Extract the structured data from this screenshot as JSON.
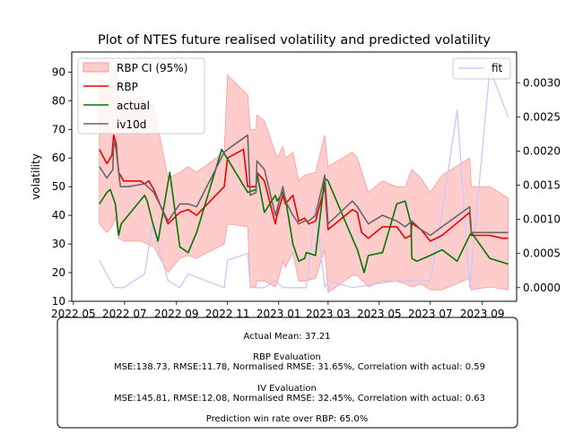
{
  "chart_data": {
    "type": "line",
    "title": "Plot of NTES future realised volatility and predicted volatility",
    "ylabel": "volatility",
    "ylim": [
      10,
      97
    ],
    "y2lim": [
      -0.0002,
      0.00345
    ],
    "yticks": [
      10,
      20,
      30,
      40,
      50,
      60,
      70,
      80,
      90
    ],
    "y2ticks": [
      "0.0000",
      "0.0005",
      "0.0010",
      "0.0015",
      "0.0020",
      "0.0025",
      "0.0030"
    ],
    "y2tick_values": [
      0,
      0.0005,
      0.001,
      0.0015,
      0.002,
      0.0025,
      0.003
    ],
    "xticks": [
      "2022 05",
      "2022 07",
      "2022 09",
      "2022 11",
      "2023 01",
      "2023 03",
      "2023 05",
      "2023 07",
      "2023 09"
    ],
    "xtick_values": [
      "2022-05-01",
      "2022-07-01",
      "2022-09-01",
      "2022-11-01",
      "2023-01-01",
      "2023-03-01",
      "2023-05-01",
      "2023-07-01",
      "2023-09-01"
    ],
    "xlim": [
      "2022-04-29",
      "2023-10-12"
    ],
    "legend_left": [
      "RBP CI (95%)",
      "RBP",
      "actual",
      "iv10d"
    ],
    "legend_right": [
      "fit"
    ],
    "legend_placement": [
      "upper left",
      "upper right"
    ],
    "colors": {
      "ci": "#ff9999",
      "rbp": "#ee0000",
      "actual": "#007700",
      "iv10d": "#666666",
      "fit": "#c8c8ff"
    },
    "series": [
      {
        "name": "RBP",
        "axis": "left",
        "points": [
          [
            "2022-06-01",
            63
          ],
          [
            "2022-06-10",
            58
          ],
          [
            "2022-06-16",
            61
          ],
          [
            "2022-06-18",
            68
          ],
          [
            "2022-06-21",
            65
          ],
          [
            "2022-06-24",
            55
          ],
          [
            "2022-06-30",
            52
          ],
          [
            "2022-07-20",
            52
          ],
          [
            "2022-07-25",
            51
          ],
          [
            "2022-07-30",
            52
          ],
          [
            "2022-08-05",
            49
          ],
          [
            "2022-08-22",
            37
          ],
          [
            "2022-09-05",
            41
          ],
          [
            "2022-09-15",
            42
          ],
          [
            "2022-09-25",
            40
          ],
          [
            "2022-10-28",
            50
          ],
          [
            "2022-11-01",
            60
          ],
          [
            "2022-11-20",
            63
          ],
          [
            "2022-11-25",
            50
          ],
          [
            "2022-12-05",
            50
          ],
          [
            "2022-12-06",
            55
          ],
          [
            "2022-12-15",
            52
          ],
          [
            "2022-12-28",
            37
          ],
          [
            "2022-12-30",
            40
          ],
          [
            "2023-01-06",
            47
          ],
          [
            "2023-01-09",
            44
          ],
          [
            "2023-01-18",
            47
          ],
          [
            "2023-01-25",
            38
          ],
          [
            "2023-02-01",
            39
          ],
          [
            "2023-02-06",
            37
          ],
          [
            "2023-02-14",
            38
          ],
          [
            "2023-02-25",
            50
          ],
          [
            "2023-03-01",
            35
          ],
          [
            "2023-03-30",
            42
          ],
          [
            "2023-04-05",
            41
          ],
          [
            "2023-04-10",
            34
          ],
          [
            "2023-04-18",
            32
          ],
          [
            "2023-05-05",
            36
          ],
          [
            "2023-05-22",
            36
          ],
          [
            "2023-06-01",
            32
          ],
          [
            "2023-06-08",
            33
          ],
          [
            "2023-06-09",
            38
          ],
          [
            "2023-06-10",
            37
          ],
          [
            "2023-06-20",
            35
          ],
          [
            "2023-07-01",
            31
          ],
          [
            "2023-07-15",
            33
          ],
          [
            "2023-08-17",
            41
          ],
          [
            "2023-08-19",
            33
          ],
          [
            "2023-09-10",
            33
          ],
          [
            "2023-09-25",
            32
          ],
          [
            "2023-10-02",
            32
          ]
        ]
      },
      {
        "name": "actual",
        "axis": "left",
        "points": [
          [
            "2022-06-01",
            44
          ],
          [
            "2022-06-10",
            48
          ],
          [
            "2022-06-14",
            49
          ],
          [
            "2022-06-20",
            44
          ],
          [
            "2022-06-24",
            33
          ],
          [
            "2022-06-27",
            37
          ],
          [
            "2022-07-25",
            47
          ],
          [
            "2022-07-28",
            45
          ],
          [
            "2022-08-03",
            38
          ],
          [
            "2022-08-10",
            31
          ],
          [
            "2022-08-24",
            55
          ],
          [
            "2022-09-05",
            29
          ],
          [
            "2022-09-15",
            27
          ],
          [
            "2022-09-25",
            34
          ],
          [
            "2022-10-25",
            63
          ],
          [
            "2022-11-25",
            48
          ],
          [
            "2022-12-05",
            49
          ],
          [
            "2022-12-06",
            55
          ],
          [
            "2022-12-15",
            41
          ],
          [
            "2022-12-28",
            47
          ],
          [
            "2022-12-30",
            45
          ],
          [
            "2023-01-06",
            48
          ],
          [
            "2023-01-09",
            46
          ],
          [
            "2023-01-18",
            30
          ],
          [
            "2023-01-25",
            24
          ],
          [
            "2023-02-01",
            25
          ],
          [
            "2023-02-03",
            27
          ],
          [
            "2023-02-14",
            26
          ],
          [
            "2023-02-25",
            53
          ],
          [
            "2023-03-01",
            52
          ],
          [
            "2023-03-30",
            32
          ],
          [
            "2023-04-05",
            28
          ],
          [
            "2023-04-13",
            20
          ],
          [
            "2023-04-18",
            26
          ],
          [
            "2023-05-05",
            27
          ],
          [
            "2023-05-22",
            44
          ],
          [
            "2023-06-01",
            45
          ],
          [
            "2023-06-08",
            37
          ],
          [
            "2023-06-09",
            25
          ],
          [
            "2023-06-15",
            24
          ],
          [
            "2023-07-01",
            26
          ],
          [
            "2023-07-15",
            28
          ],
          [
            "2023-08-02",
            24
          ],
          [
            "2023-08-17",
            33
          ],
          [
            "2023-08-19",
            34
          ],
          [
            "2023-09-10",
            25
          ],
          [
            "2023-10-02",
            23
          ]
        ]
      },
      {
        "name": "iv10d",
        "axis": "left",
        "points": [
          [
            "2022-06-01",
            57
          ],
          [
            "2022-06-10",
            53
          ],
          [
            "2022-06-17",
            56
          ],
          [
            "2022-06-18",
            66
          ],
          [
            "2022-06-21",
            63
          ],
          [
            "2022-06-26",
            50
          ],
          [
            "2022-07-05",
            50
          ],
          [
            "2022-07-25",
            51
          ],
          [
            "2022-08-05",
            48
          ],
          [
            "2022-08-22",
            38
          ],
          [
            "2022-09-05",
            44
          ],
          [
            "2022-09-15",
            44
          ],
          [
            "2022-09-25",
            43
          ],
          [
            "2022-10-28",
            62
          ],
          [
            "2022-11-01",
            63
          ],
          [
            "2022-11-25",
            68
          ],
          [
            "2022-11-28",
            47
          ],
          [
            "2022-12-05",
            48
          ],
          [
            "2022-12-06",
            59
          ],
          [
            "2022-12-15",
            56
          ],
          [
            "2022-12-28",
            40
          ],
          [
            "2022-12-30",
            42
          ],
          [
            "2023-01-06",
            50
          ],
          [
            "2023-01-09",
            45
          ],
          [
            "2023-01-18",
            40
          ],
          [
            "2023-01-25",
            37
          ],
          [
            "2023-02-01",
            38
          ],
          [
            "2023-02-06",
            38
          ],
          [
            "2023-02-14",
            40
          ],
          [
            "2023-02-25",
            54
          ],
          [
            "2023-03-01",
            37
          ],
          [
            "2023-03-30",
            45
          ],
          [
            "2023-04-05",
            43
          ],
          [
            "2023-04-18",
            37
          ],
          [
            "2023-05-05",
            40
          ],
          [
            "2023-05-22",
            38
          ],
          [
            "2023-06-01",
            36
          ],
          [
            "2023-06-09",
            38
          ],
          [
            "2023-06-20",
            35
          ],
          [
            "2023-07-01",
            33
          ],
          [
            "2023-07-15",
            36
          ],
          [
            "2023-08-17",
            43
          ],
          [
            "2023-08-19",
            34
          ],
          [
            "2023-09-25",
            34
          ],
          [
            "2023-10-02",
            34
          ]
        ]
      },
      {
        "name": "fit",
        "axis": "right",
        "points": [
          [
            "2022-06-01",
            0.0004
          ],
          [
            "2022-06-14",
            0.0001
          ],
          [
            "2022-06-19",
            0.0
          ],
          [
            "2022-06-30",
            0.0
          ],
          [
            "2022-07-25",
            0.0002
          ],
          [
            "2022-08-03",
            0.0009
          ],
          [
            "2022-08-22",
            0.0001
          ],
          [
            "2022-09-05",
            0.0
          ],
          [
            "2022-09-15",
            0.0002
          ],
          [
            "2022-10-28",
            0.0
          ],
          [
            "2022-11-01",
            0.0004
          ],
          [
            "2022-11-25",
            0.0005
          ],
          [
            "2022-11-28",
            0.0
          ],
          [
            "2022-12-15",
            0.0
          ],
          [
            "2022-12-28",
            0.0001
          ],
          [
            "2023-01-06",
            0.0
          ],
          [
            "2023-01-25",
            0.0
          ],
          [
            "2023-02-03",
            0.0
          ],
          [
            "2023-02-14",
            0.0012
          ],
          [
            "2023-02-25",
            0.0
          ],
          [
            "2023-03-01",
            0.0001
          ],
          [
            "2023-03-30",
            0.0
          ],
          [
            "2023-05-22",
            0.0001
          ],
          [
            "2023-07-01",
            0.0001
          ],
          [
            "2023-07-15",
            0.0011
          ],
          [
            "2023-08-02",
            0.0026
          ],
          [
            "2023-08-17",
            0.0
          ],
          [
            "2023-09-10",
            0.0032
          ],
          [
            "2023-10-02",
            0.0025
          ]
        ]
      }
    ],
    "ci_band": {
      "name": "RBP CI (95%)",
      "axis": "left",
      "points": [
        [
          "2022-06-01",
          37,
          88
        ],
        [
          "2022-06-10",
          34,
          86
        ],
        [
          "2022-06-16",
          36,
          89
        ],
        [
          "2022-06-20",
          39,
          92
        ],
        [
          "2022-06-24",
          32,
          82
        ],
        [
          "2022-06-30",
          31,
          80
        ],
        [
          "2022-07-20",
          31,
          81
        ],
        [
          "2022-08-05",
          29,
          78
        ],
        [
          "2022-08-22",
          20,
          53
        ],
        [
          "2022-09-05",
          25,
          55
        ],
        [
          "2022-09-15",
          26,
          57
        ],
        [
          "2022-09-25",
          25,
          55
        ],
        [
          "2022-10-28",
          30,
          62
        ],
        [
          "2022-11-01",
          37,
          89
        ],
        [
          "2022-11-25",
          36,
          82
        ],
        [
          "2022-11-28",
          15,
          70
        ],
        [
          "2022-12-05",
          15,
          70
        ],
        [
          "2022-12-06",
          17,
          75
        ],
        [
          "2022-12-15",
          17,
          73
        ],
        [
          "2022-12-28",
          15,
          62
        ],
        [
          "2022-12-30",
          16,
          60
        ],
        [
          "2023-01-06",
          24,
          64
        ],
        [
          "2023-01-09",
          22,
          60
        ],
        [
          "2023-01-18",
          27,
          62
        ],
        [
          "2023-01-25",
          17,
          52
        ],
        [
          "2023-02-01",
          17,
          54
        ],
        [
          "2023-02-14",
          18,
          55
        ],
        [
          "2023-02-25",
          28,
          68
        ],
        [
          "2023-03-01",
          13,
          57
        ],
        [
          "2023-03-30",
          19,
          62
        ],
        [
          "2023-04-05",
          19,
          60
        ],
        [
          "2023-04-18",
          15,
          48
        ],
        [
          "2023-05-05",
          17,
          52
        ],
        [
          "2023-05-22",
          17,
          50
        ],
        [
          "2023-06-01",
          16,
          50
        ],
        [
          "2023-06-09",
          15,
          56
        ],
        [
          "2023-06-20",
          16,
          53
        ],
        [
          "2023-07-01",
          14,
          48
        ],
        [
          "2023-07-15",
          14,
          54
        ],
        [
          "2023-08-17",
          18,
          60
        ],
        [
          "2023-08-19",
          14,
          50
        ],
        [
          "2023-09-10",
          15,
          50
        ],
        [
          "2023-10-02",
          14,
          46
        ]
      ]
    }
  },
  "stats_box": {
    "actual_mean": "Actual Mean: 37.21",
    "rbp_header": "RBP Evaluation",
    "rbp_metrics": "MSE:138.73, RMSE:11.78, Normalised RMSE: 31.65%, Correlation with actual: 0.59",
    "iv_header": "IV Evaluation",
    "iv_metrics": "MSE:145.81, RMSE:12.08, Normalised RMSE: 32.45%, Correlation with actual: 0.63",
    "win_rate": "Prediction win rate over RBP: 65.0%"
  }
}
